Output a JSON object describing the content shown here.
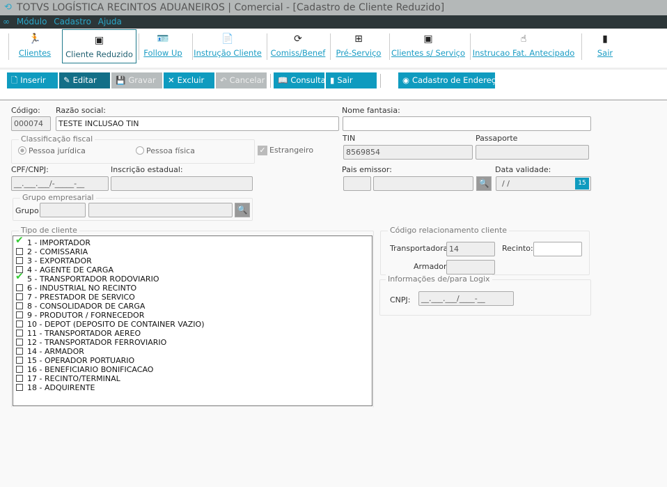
{
  "window": {
    "title": "TOTVS LOGÍSTICA RECINTOS ADUANEIROS | Comercial - [Cadastro de Cliente Reduzido]"
  },
  "menu": [
    "Módulo",
    "Cadastro",
    "Ajuda"
  ],
  "ribbon": [
    {
      "label": "Clientes",
      "icon": "runner-icon"
    },
    {
      "label": "Cliente Reduzido",
      "icon": "window-edit-icon",
      "selected": true
    },
    {
      "label": "Follow Up",
      "icon": "person-card-icon"
    },
    {
      "label": "Instrução Cliente",
      "icon": "document-icon"
    },
    {
      "label": "Comiss/Benef",
      "icon": "refresh-icon"
    },
    {
      "label": "Pré-Serviço",
      "icon": "network-icon"
    },
    {
      "label": "Clientes s/ Serviço",
      "icon": "window-edit-icon"
    },
    {
      "label": "Instrucao Fat. Antecipado",
      "icon": "hand-icon"
    },
    {
      "label": "Sair",
      "icon": "exit-door-icon"
    }
  ],
  "actions": [
    {
      "label": "Inserir",
      "icon": "new-document-icon",
      "state": "enabled"
    },
    {
      "label": "Editar",
      "icon": "edit-icon",
      "state": "active"
    },
    {
      "label": "Gravar",
      "icon": "save-icon",
      "state": "disabled"
    },
    {
      "label": "Excluir",
      "icon": "delete-icon",
      "state": "enabled"
    },
    {
      "label": "Cancelar",
      "icon": "undo-icon",
      "state": "disabled"
    },
    {
      "label": "Consultar",
      "icon": "book-icon",
      "state": "enabled"
    },
    {
      "label": "Sair",
      "icon": "exit-door-icon",
      "state": "enabled"
    },
    {
      "label": "Cadastro de Endereço",
      "icon": "address-icon",
      "state": "enabled"
    }
  ],
  "form": {
    "codigo_label": "Código:",
    "codigo": "000074",
    "razao_label": "Razão social:",
    "razao": "TESTE INCLUSAO TIN",
    "fantasia_label": "Nome fantasia:",
    "fantasia": "",
    "classificacao_title": "Classificação fiscal",
    "pj": "Pessoa jurídica",
    "pf": "Pessoa física",
    "estrangeiro": "Estrangeiro",
    "tin_label": "TIN",
    "tin": "8569854",
    "passaporte_label": "Passaporte",
    "cpf_label": "CPF/CNPJ:",
    "cpf": "__.___.___/-_____-__",
    "ie_label": "Inscrição estadual:",
    "pais_label": "Pais emissor:",
    "data_label": "Data validade:",
    "data": " / /",
    "grupo_title": "Grupo empresarial",
    "grupo_label": "Grupo:",
    "tipo_title": "Tipo de cliente",
    "codrel_title": "Código relacionamento cliente",
    "transp_label": "Transportadora:",
    "transp": "14",
    "recinto_label": "Recinto:",
    "armador_label": "Armador:",
    "logix_title": "Informações de/para Logix",
    "cnpj_label": "CNPJ:",
    "cnpj": "__.___.___/____-__"
  },
  "tipos": [
    {
      "label": "1 - IMPORTADOR",
      "checked": true
    },
    {
      "label": "2 - COMISSARIA",
      "checked": false
    },
    {
      "label": "3 - EXPORTADOR",
      "checked": false
    },
    {
      "label": "4 - AGENTE DE CARGA",
      "checked": false
    },
    {
      "label": "5 - TRANSPORTADOR RODOVIARIO",
      "checked": true
    },
    {
      "label": "6 - INDUSTRIAL NO RECINTO",
      "checked": false
    },
    {
      "label": "7 - PRESTADOR DE SERVICO",
      "checked": false
    },
    {
      "label": "8 - CONSOLIDADOR DE CARGA",
      "checked": false
    },
    {
      "label": "9 - PRODUTOR / FORNECEDOR",
      "checked": false
    },
    {
      "label": "10 - DEPOT (DEPOSITO DE CONTAINER VAZIO)",
      "checked": false
    },
    {
      "label": "11 - TRANSPORTADOR AEREO",
      "checked": false
    },
    {
      "label": "12 - TRANSPORTADOR FERROVIARIO",
      "checked": false
    },
    {
      "label": "14 - ARMADOR",
      "checked": false
    },
    {
      "label": "15 - OPERADOR PORTUARIO",
      "checked": false
    },
    {
      "label": "16 - BENEFICIARIO BONIFICACAO",
      "checked": false
    },
    {
      "label": "17 - RECINTO/TERMINAL",
      "checked": false
    },
    {
      "label": "18 - ADQUIRENTE",
      "checked": false
    }
  ],
  "colors": {
    "accent": "#0f9bbf",
    "menubar": "#2c3638",
    "link": "#1a9cc4"
  }
}
